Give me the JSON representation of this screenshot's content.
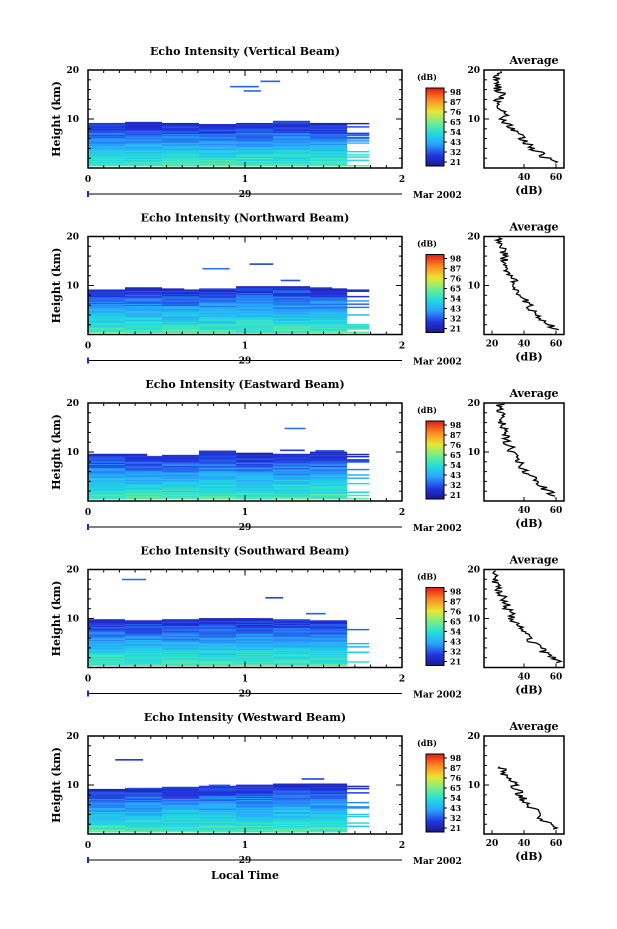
{
  "figure": {
    "date_label": "Mar 2002",
    "day_label": "29",
    "xlabel": "Local Time",
    "ylabel": "Height (km)",
    "colorbar_title": "(dB)",
    "colorbar_ticks": [
      "98",
      "87",
      "76",
      "65",
      "54",
      "43",
      "32",
      "21"
    ],
    "avg_title": "Average",
    "avg_xlabel": "(dB)"
  },
  "chart_data": [
    {
      "type": "heatmap",
      "title": "Echo Intensity (Vertical Beam)",
      "xlabel": "Local Time",
      "ylabel": "Height (km)",
      "xlim": [
        0,
        2
      ],
      "ylim": [
        0,
        20
      ],
      "xticks": [
        "0",
        "1",
        "2"
      ],
      "yticks": [
        "10",
        "20"
      ],
      "top_height_km": [
        9,
        9.3,
        9.1,
        8.8,
        9.2,
        9.6,
        9.1
      ],
      "colorbar": {
        "label": "(dB)",
        "min": 21,
        "max": 98
      },
      "average_profile": {
        "title": "Average",
        "xlabel": "(dB)",
        "xticks": [
          "40",
          "60"
        ],
        "height_km": [
          1,
          2,
          3,
          4,
          5,
          6,
          7,
          8,
          9,
          10,
          11,
          12,
          13,
          14,
          15,
          16,
          17,
          18,
          19
        ],
        "db": [
          60,
          54,
          50,
          45,
          42,
          39,
          37,
          33,
          30,
          27,
          28,
          26,
          25,
          24,
          27,
          23,
          25,
          22,
          24
        ]
      }
    },
    {
      "type": "heatmap",
      "title": "Echo Intensity (Northward Beam)",
      "xlabel": "Local Time",
      "ylabel": "Height (km)",
      "xlim": [
        0,
        2
      ],
      "ylim": [
        0,
        20
      ],
      "xticks": [
        "0",
        "1",
        "2"
      ],
      "yticks": [
        "10",
        "20"
      ],
      "top_height_km": [
        9.2,
        9.5,
        9.0,
        9.3,
        9.8,
        9.7,
        9.4
      ],
      "colorbar": {
        "label": "(dB)",
        "min": 21,
        "max": 98
      },
      "average_profile": {
        "title": "Average",
        "xlabel": "(dB)",
        "xticks": [
          "20",
          "40",
          "60"
        ],
        "height_km": [
          1,
          2,
          3,
          4,
          5,
          6,
          7,
          8,
          9,
          10,
          11,
          12,
          13,
          14,
          15,
          16,
          17,
          18,
          19
        ],
        "db": [
          60,
          55,
          52,
          48,
          45,
          43,
          40,
          38,
          36,
          34,
          33,
          31,
          30,
          29,
          28,
          27,
          27,
          26,
          25
        ]
      }
    },
    {
      "type": "heatmap",
      "title": "Echo Intensity (Eastward Beam)",
      "xlabel": "Local Time",
      "ylabel": "Height (km)",
      "xlim": [
        0,
        2
      ],
      "ylim": [
        0,
        20
      ],
      "xticks": [
        "0",
        "1",
        "2"
      ],
      "yticks": [
        "10",
        "20"
      ],
      "top_height_km": [
        9.6,
        9.2,
        9.4,
        10.1,
        9.7,
        9.5,
        9.9
      ],
      "colorbar": {
        "label": "(dB)",
        "min": 21,
        "max": 98
      },
      "average_profile": {
        "title": "Average",
        "xlabel": "(dB)",
        "xticks": [
          "40",
          "60"
        ],
        "height_km": [
          1,
          2,
          3,
          4,
          5,
          6,
          7,
          8,
          9,
          10,
          11,
          12,
          13,
          14,
          15,
          16,
          17,
          18,
          19
        ],
        "db": [
          60,
          55,
          52,
          48,
          44,
          41,
          39,
          36,
          35,
          33,
          31,
          30,
          29,
          28,
          27,
          26,
          26,
          25,
          25
        ]
      }
    },
    {
      "type": "heatmap",
      "title": "Echo Intensity (Southward Beam)",
      "xlabel": "Local Time",
      "ylabel": "Height (km)",
      "xlim": [
        0,
        2
      ],
      "ylim": [
        0,
        20
      ],
      "xticks": [
        "0",
        "1",
        "2"
      ],
      "yticks": [
        "10",
        "20"
      ],
      "top_height_km": [
        9.8,
        9.6,
        9.7,
        10.0,
        9.9,
        9.8,
        9.6
      ],
      "colorbar": {
        "label": "(dB)",
        "min": 21,
        "max": 98
      },
      "average_profile": {
        "title": "Average",
        "xlabel": "(dB)",
        "xticks": [
          "40",
          "60"
        ],
        "height_km": [
          1,
          2,
          3,
          4,
          5,
          6,
          7,
          8,
          9,
          10,
          11,
          12,
          13,
          14,
          15,
          16,
          17,
          18,
          19
        ],
        "db": [
          62,
          58,
          53,
          50,
          46,
          42,
          40,
          37,
          35,
          33,
          32,
          30,
          29,
          28,
          26,
          24,
          23,
          22,
          22
        ]
      }
    },
    {
      "type": "heatmap",
      "title": "Echo Intensity (Westward Beam)",
      "xlabel": "Local Time",
      "ylabel": "Height (km)",
      "xlim": [
        0,
        2
      ],
      "ylim": [
        0,
        20
      ],
      "xticks": [
        "0",
        "1",
        "2"
      ],
      "yticks": [
        "10",
        "20"
      ],
      "top_height_km": [
        9.1,
        9.3,
        9.6,
        9.8,
        10.0,
        10.2,
        10.1
      ],
      "colorbar": {
        "label": "(dB)",
        "min": 21,
        "max": 98
      },
      "average_profile": {
        "title": "Average",
        "xlabel": "(dB)",
        "xticks": [
          "20",
          "40",
          "60"
        ],
        "height_km": [
          1,
          2,
          3,
          4,
          5,
          6,
          7,
          8,
          9,
          10,
          11,
          12,
          13
        ],
        "db": [
          60,
          56,
          52,
          49,
          46,
          43,
          40,
          38,
          36,
          34,
          31,
          28,
          26
        ]
      }
    }
  ]
}
